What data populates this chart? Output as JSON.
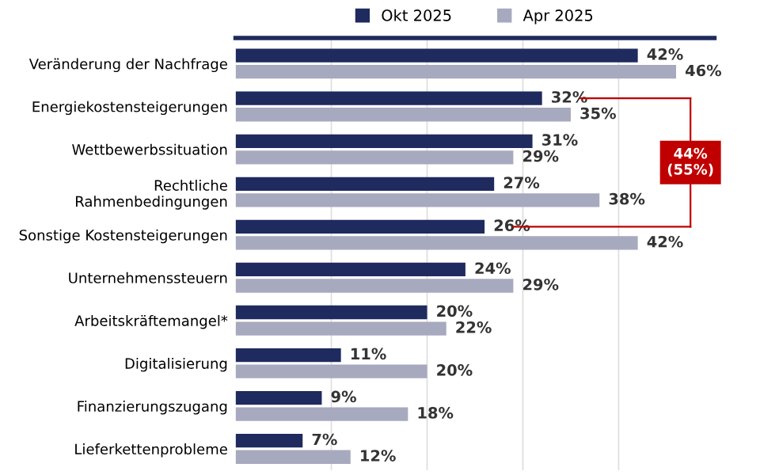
{
  "chart_data": {
    "type": "bar",
    "orientation": "horizontal",
    "categories": [
      "Veränderung der Nachfrage",
      "Energiekostensteigerungen",
      "Wettbewerbssituation",
      "Rechtliche\nRahmenbedingungen",
      "Sonstige Kostensteigerungen",
      "Unternehmenssteuern",
      "Arbeitskräftemangel*",
      "Digitalisierung",
      "Finanzierungszugang",
      "Lieferkettenprobleme"
    ],
    "series": [
      {
        "name": "Okt 2025",
        "color": "#1f2a5e",
        "values": [
          42,
          32,
          31,
          27,
          26,
          24,
          20,
          11,
          9,
          7
        ],
        "value_labels": [
          "42%",
          "32%",
          "31%",
          "27%",
          "26%",
          "24%",
          "20%",
          "11%",
          "9%",
          "7%"
        ]
      },
      {
        "name": "Apr 2025",
        "color": "#a7a9bf",
        "values": [
          46,
          35,
          29,
          38,
          42,
          29,
          22,
          20,
          18,
          12
        ],
        "value_labels": [
          "46%",
          "35%",
          "29%",
          "38%",
          "42%",
          "29%",
          "22%",
          "20%",
          "18%",
          "12%"
        ]
      }
    ],
    "xlim": [
      0,
      50
    ],
    "xticks": [
      {
        "value": 10,
        "label": null
      },
      {
        "value": 20,
        "label": null
      },
      {
        "value": 30,
        "label": null
      },
      {
        "value": 40,
        "label": null
      }
    ],
    "tick_labels": "y",
    "grid": "x",
    "legend": "top",
    "annotations": [
      "44%\n(55%)"
    ]
  }
}
